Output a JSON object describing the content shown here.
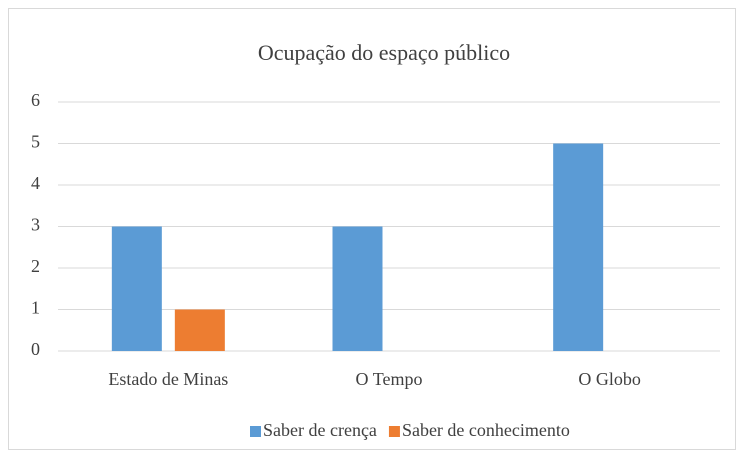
{
  "chart_data": {
    "type": "bar",
    "title": "Ocupação do espaço público",
    "categories": [
      "Estado de Minas",
      "O Tempo",
      "O Globo"
    ],
    "series": [
      {
        "name": "Saber de crença",
        "color": "#5b9bd5",
        "values": [
          3,
          3,
          5
        ]
      },
      {
        "name": "Saber de conhecimento",
        "color": "#ed7d31",
        "values": [
          1,
          0,
          0
        ]
      }
    ],
    "ylim": [
      0,
      6
    ],
    "yticks": [
      0,
      1,
      2,
      3,
      4,
      5,
      6
    ],
    "grid": true,
    "legend": "bottom"
  }
}
